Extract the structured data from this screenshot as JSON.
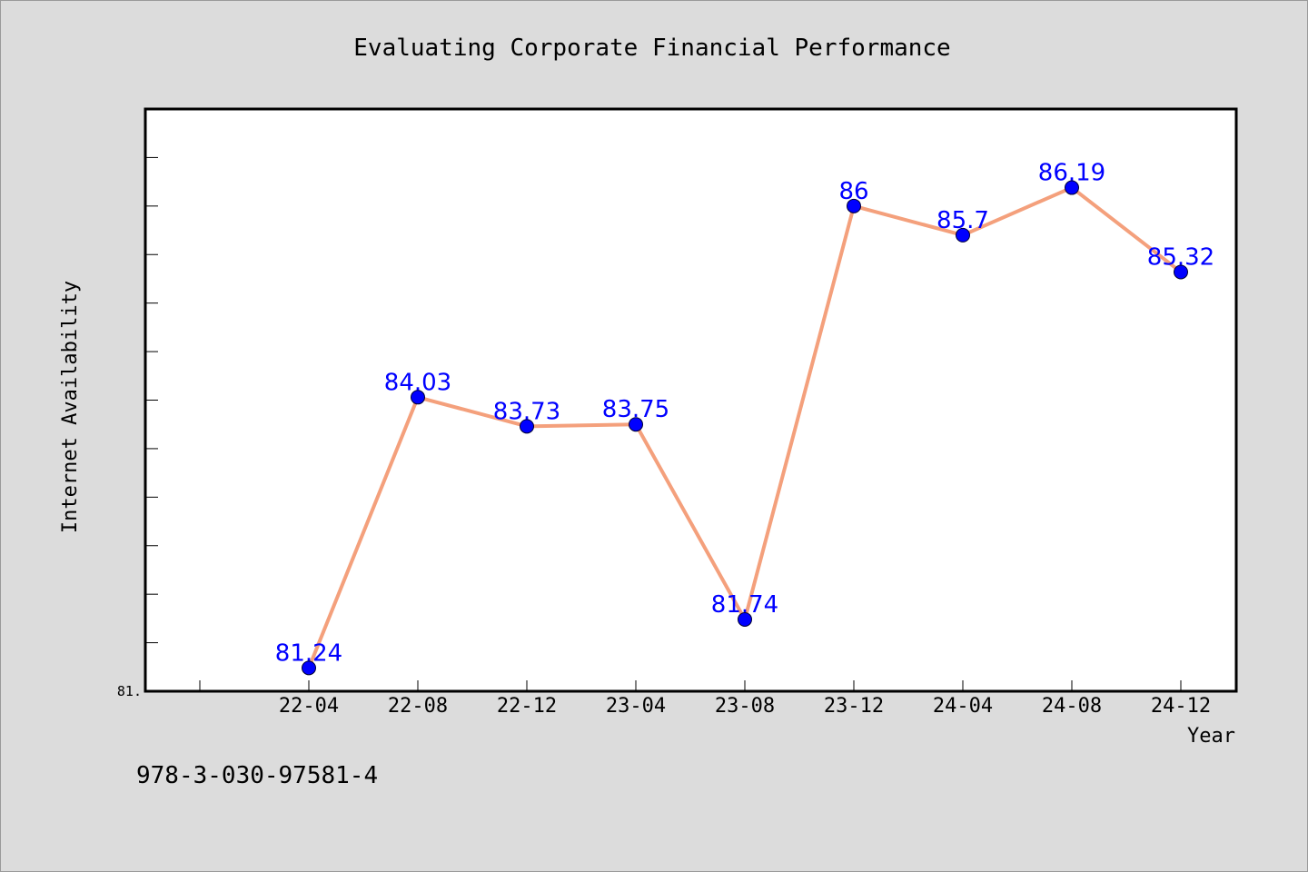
{
  "chart_data": {
    "type": "line",
    "title": "Evaluating Corporate Financial Performance",
    "xlabel": "Year",
    "ylabel": "Internet Availability",
    "x": [
      "22-04",
      "22-08",
      "22-12",
      "23-04",
      "23-08",
      "23-12",
      "24-04",
      "24-08",
      "24-12"
    ],
    "series": [
      {
        "values": [
          81.24,
          84.03,
          83.73,
          83.75,
          81.74,
          86,
          85.7,
          86.19,
          85.32
        ]
      }
    ],
    "data_labels": [
      "81.24",
      "84.03",
      "83.73",
      "83.75",
      "81.74",
      "86",
      "85.7",
      "86.19",
      "85.32"
    ],
    "y_min_label": "81.",
    "ylim": [
      81,
      87
    ],
    "grid": false,
    "line_color": "#f4a07c",
    "marker_color": "#0000ff",
    "label_color": "#0000ff"
  },
  "footer": {
    "isbn": "978-3-030-97581-4"
  }
}
